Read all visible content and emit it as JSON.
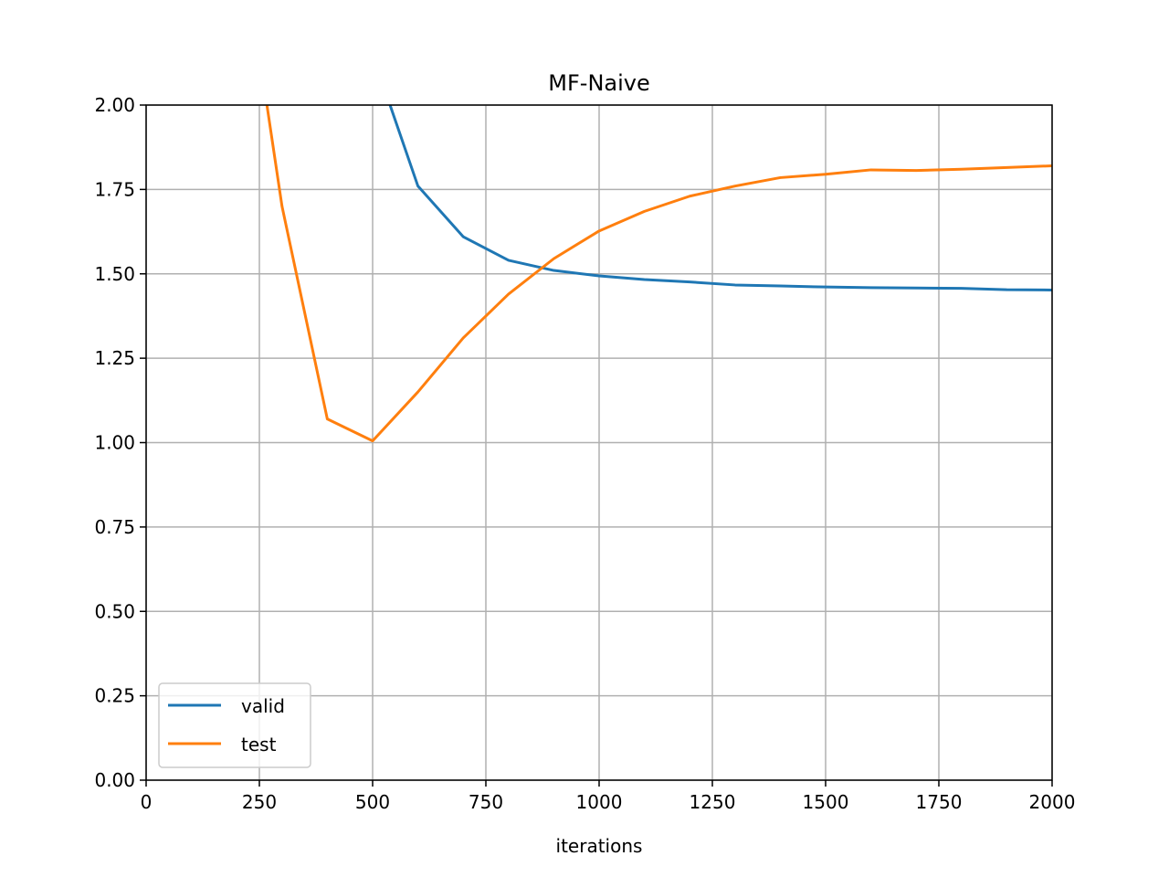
{
  "chart_data": {
    "type": "line",
    "title": "MF-Naive",
    "xlabel": "iterations",
    "ylabel": "",
    "xlim": [
      0,
      2000
    ],
    "ylim": [
      0,
      2.0
    ],
    "xticks": [
      "0",
      "250",
      "500",
      "750",
      "1000",
      "1250",
      "1500",
      "1750",
      "2000"
    ],
    "yticks": [
      "0.00",
      "0.25",
      "0.50",
      "0.75",
      "1.00",
      "1.25",
      "1.50",
      "1.75",
      "2.00"
    ],
    "grid": true,
    "legend_position": "lower-left",
    "series": [
      {
        "name": "valid",
        "color": "#1f77b4",
        "x": [
          500,
          600,
          700,
          800,
          900,
          1000,
          1100,
          1200,
          1300,
          1400,
          1500,
          1600,
          1700,
          1800,
          1900,
          2000
        ],
        "y": [
          2.15,
          1.76,
          1.61,
          1.54,
          1.51,
          1.494,
          1.483,
          1.476,
          1.467,
          1.464,
          1.461,
          1.459,
          1.458,
          1.457,
          1.453,
          1.452
        ]
      },
      {
        "name": "test",
        "color": "#ff7f0e",
        "x": [
          200,
          300,
          400,
          500,
          600,
          700,
          800,
          900,
          1000,
          1100,
          1200,
          1300,
          1400,
          1500,
          1600,
          1700,
          1800,
          1900,
          2000
        ],
        "y": [
          2.6,
          1.7,
          1.07,
          1.005,
          1.15,
          1.31,
          1.44,
          1.545,
          1.627,
          1.685,
          1.73,
          1.76,
          1.785,
          1.795,
          1.808,
          1.806,
          1.81,
          1.815,
          1.82
        ]
      }
    ]
  }
}
